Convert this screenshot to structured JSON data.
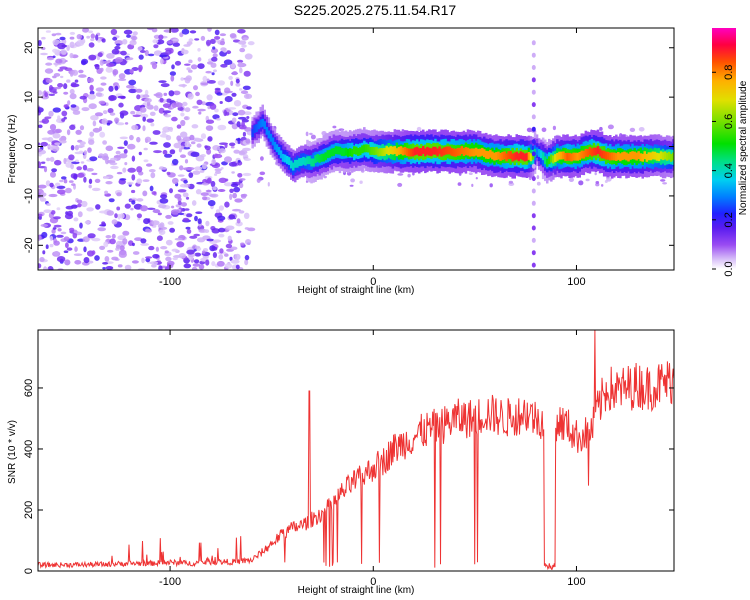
{
  "title": "S225.2025.275.11.54.R17",
  "chart_data": [
    {
      "type": "heatmap",
      "xlabel": "Height of straight line (km)",
      "ylabel": "Frequency (Hz)",
      "xlim": [
        -165,
        148
      ],
      "ylim": [
        -25,
        24
      ],
      "xticks": [
        -100,
        0,
        100
      ],
      "yticks": [
        -20,
        -10,
        0,
        10,
        20
      ],
      "colorbar": {
        "label": "Normalized spectral amplitude",
        "range": [
          0,
          0.98
        ],
        "ticks": [
          0.0,
          0.2,
          0.4,
          0.6,
          0.8
        ],
        "colormap": [
          "#ffffff",
          "#c8a8f0",
          "#7a2cf0",
          "#2020ff",
          "#00a0ff",
          "#00e0e0",
          "#00e000",
          "#c8e000",
          "#ffa000",
          "#ff2000",
          "#ff00a0"
        ]
      },
      "noise_region_x": [
        -165,
        -60
      ],
      "ridge": {
        "description_points_x": [
          -60,
          -55,
          -50,
          -45,
          -40,
          -35,
          -30,
          -25,
          -20,
          -15,
          -10,
          -5,
          0,
          10,
          20,
          30,
          40,
          50,
          60,
          70,
          75,
          78,
          80,
          85,
          90,
          95,
          100,
          105,
          110,
          115,
          120,
          130,
          140,
          148
        ],
        "frequency_hz": [
          3,
          5,
          1,
          -2,
          -4,
          -3,
          -3,
          -2,
          -1,
          -1,
          -1,
          -0.5,
          -1,
          -1,
          -1,
          -1,
          -1,
          -1,
          -2,
          -2,
          -2,
          -2,
          -1,
          -3,
          -2,
          -2,
          -2,
          -1,
          -1,
          -2,
          -2,
          -2,
          -2,
          -2
        ],
        "amplitude": [
          0.25,
          0.3,
          0.3,
          0.35,
          0.4,
          0.4,
          0.45,
          0.5,
          0.5,
          0.5,
          0.55,
          0.55,
          0.6,
          0.75,
          0.9,
          0.9,
          0.85,
          0.8,
          0.8,
          0.9,
          0.9,
          0.6,
          0.3,
          0.5,
          0.75,
          0.85,
          0.8,
          0.85,
          0.9,
          0.85,
          0.8,
          0.8,
          0.7,
          0.6
        ]
      },
      "spike_x": 79
    },
    {
      "type": "line",
      "xlabel": "Height of straight line (km)",
      "ylabel": "SNR (10 * v/v)",
      "xlim": [
        -165,
        148
      ],
      "ylim": [
        0,
        790
      ],
      "xticks": [
        -100,
        0,
        100
      ],
      "yticks": [
        0,
        200,
        400,
        600
      ],
      "color": "#ee3333",
      "x": [
        -165,
        -150,
        -130,
        -120,
        -110,
        -100,
        -90,
        -80,
        -70,
        -60,
        -55,
        -50,
        -45,
        -40,
        -35,
        -30,
        -25,
        -20,
        -15,
        -10,
        -5,
        0,
        5,
        10,
        15,
        20,
        25,
        30,
        35,
        40,
        45,
        50,
        55,
        60,
        65,
        70,
        75,
        80,
        84,
        85,
        88,
        90,
        95,
        100,
        105,
        108,
        110,
        115,
        120,
        125,
        130,
        135,
        140,
        145,
        148
      ],
      "y": [
        20,
        20,
        22,
        25,
        25,
        28,
        25,
        30,
        30,
        35,
        60,
        90,
        120,
        140,
        150,
        170,
        190,
        220,
        260,
        290,
        310,
        340,
        360,
        400,
        420,
        440,
        460,
        470,
        480,
        500,
        500,
        500,
        520,
        510,
        500,
        510,
        520,
        500,
        495,
        20,
        20,
        490,
        480,
        440,
        450,
        470,
        520,
        600,
        590,
        600,
        610,
        600,
        610,
        620,
        630
      ]
    }
  ]
}
